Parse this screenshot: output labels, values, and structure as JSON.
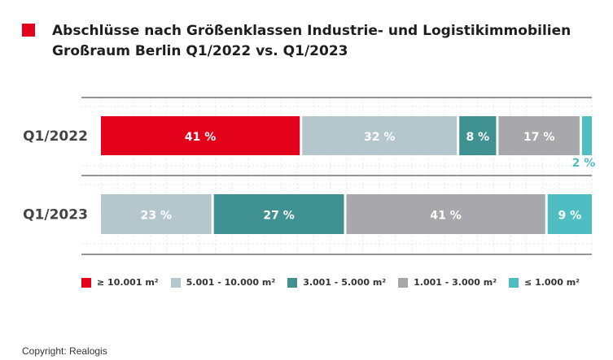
{
  "title": {
    "line1": "Abschlüsse nach Größenklassen Industrie- und Logistikimmobilien",
    "line2": "Großraum Berlin Q1/2022 vs. Q1/2023",
    "marker_color": "#e2001a"
  },
  "source": "Copyright: Realogis",
  "chart_data": {
    "type": "bar",
    "orientation": "horizontal",
    "stacked": true,
    "categories": [
      "Q1/2022",
      "Q1/2023"
    ],
    "series": [
      {
        "name": "≥ 10.001 m²",
        "color": "#e2001a",
        "values": [
          41,
          0
        ],
        "labels": [
          "41 %",
          ""
        ]
      },
      {
        "name": "5.001 - 10.000 m²",
        "color": "#b4c7cc",
        "values": [
          32,
          23
        ],
        "labels": [
          "32 %",
          "23 %"
        ]
      },
      {
        "name": "3.001 - 5.000 m²",
        "color": "#3f9192",
        "values": [
          8,
          27
        ],
        "labels": [
          "8 %",
          "27 %"
        ]
      },
      {
        "name": "1.001 - 3.000 m²",
        "color": "#a8a8ac",
        "values": [
          17,
          41
        ],
        "labels": [
          "17 %",
          "41 %"
        ]
      },
      {
        "name": "≤ 1.000 m²",
        "color": "#4fbec3",
        "values": [
          2,
          9
        ],
        "labels": [
          "2 %",
          "9 %"
        ]
      }
    ],
    "xlim": [
      0,
      100
    ],
    "grid": true,
    "legend_position": "bottom"
  }
}
